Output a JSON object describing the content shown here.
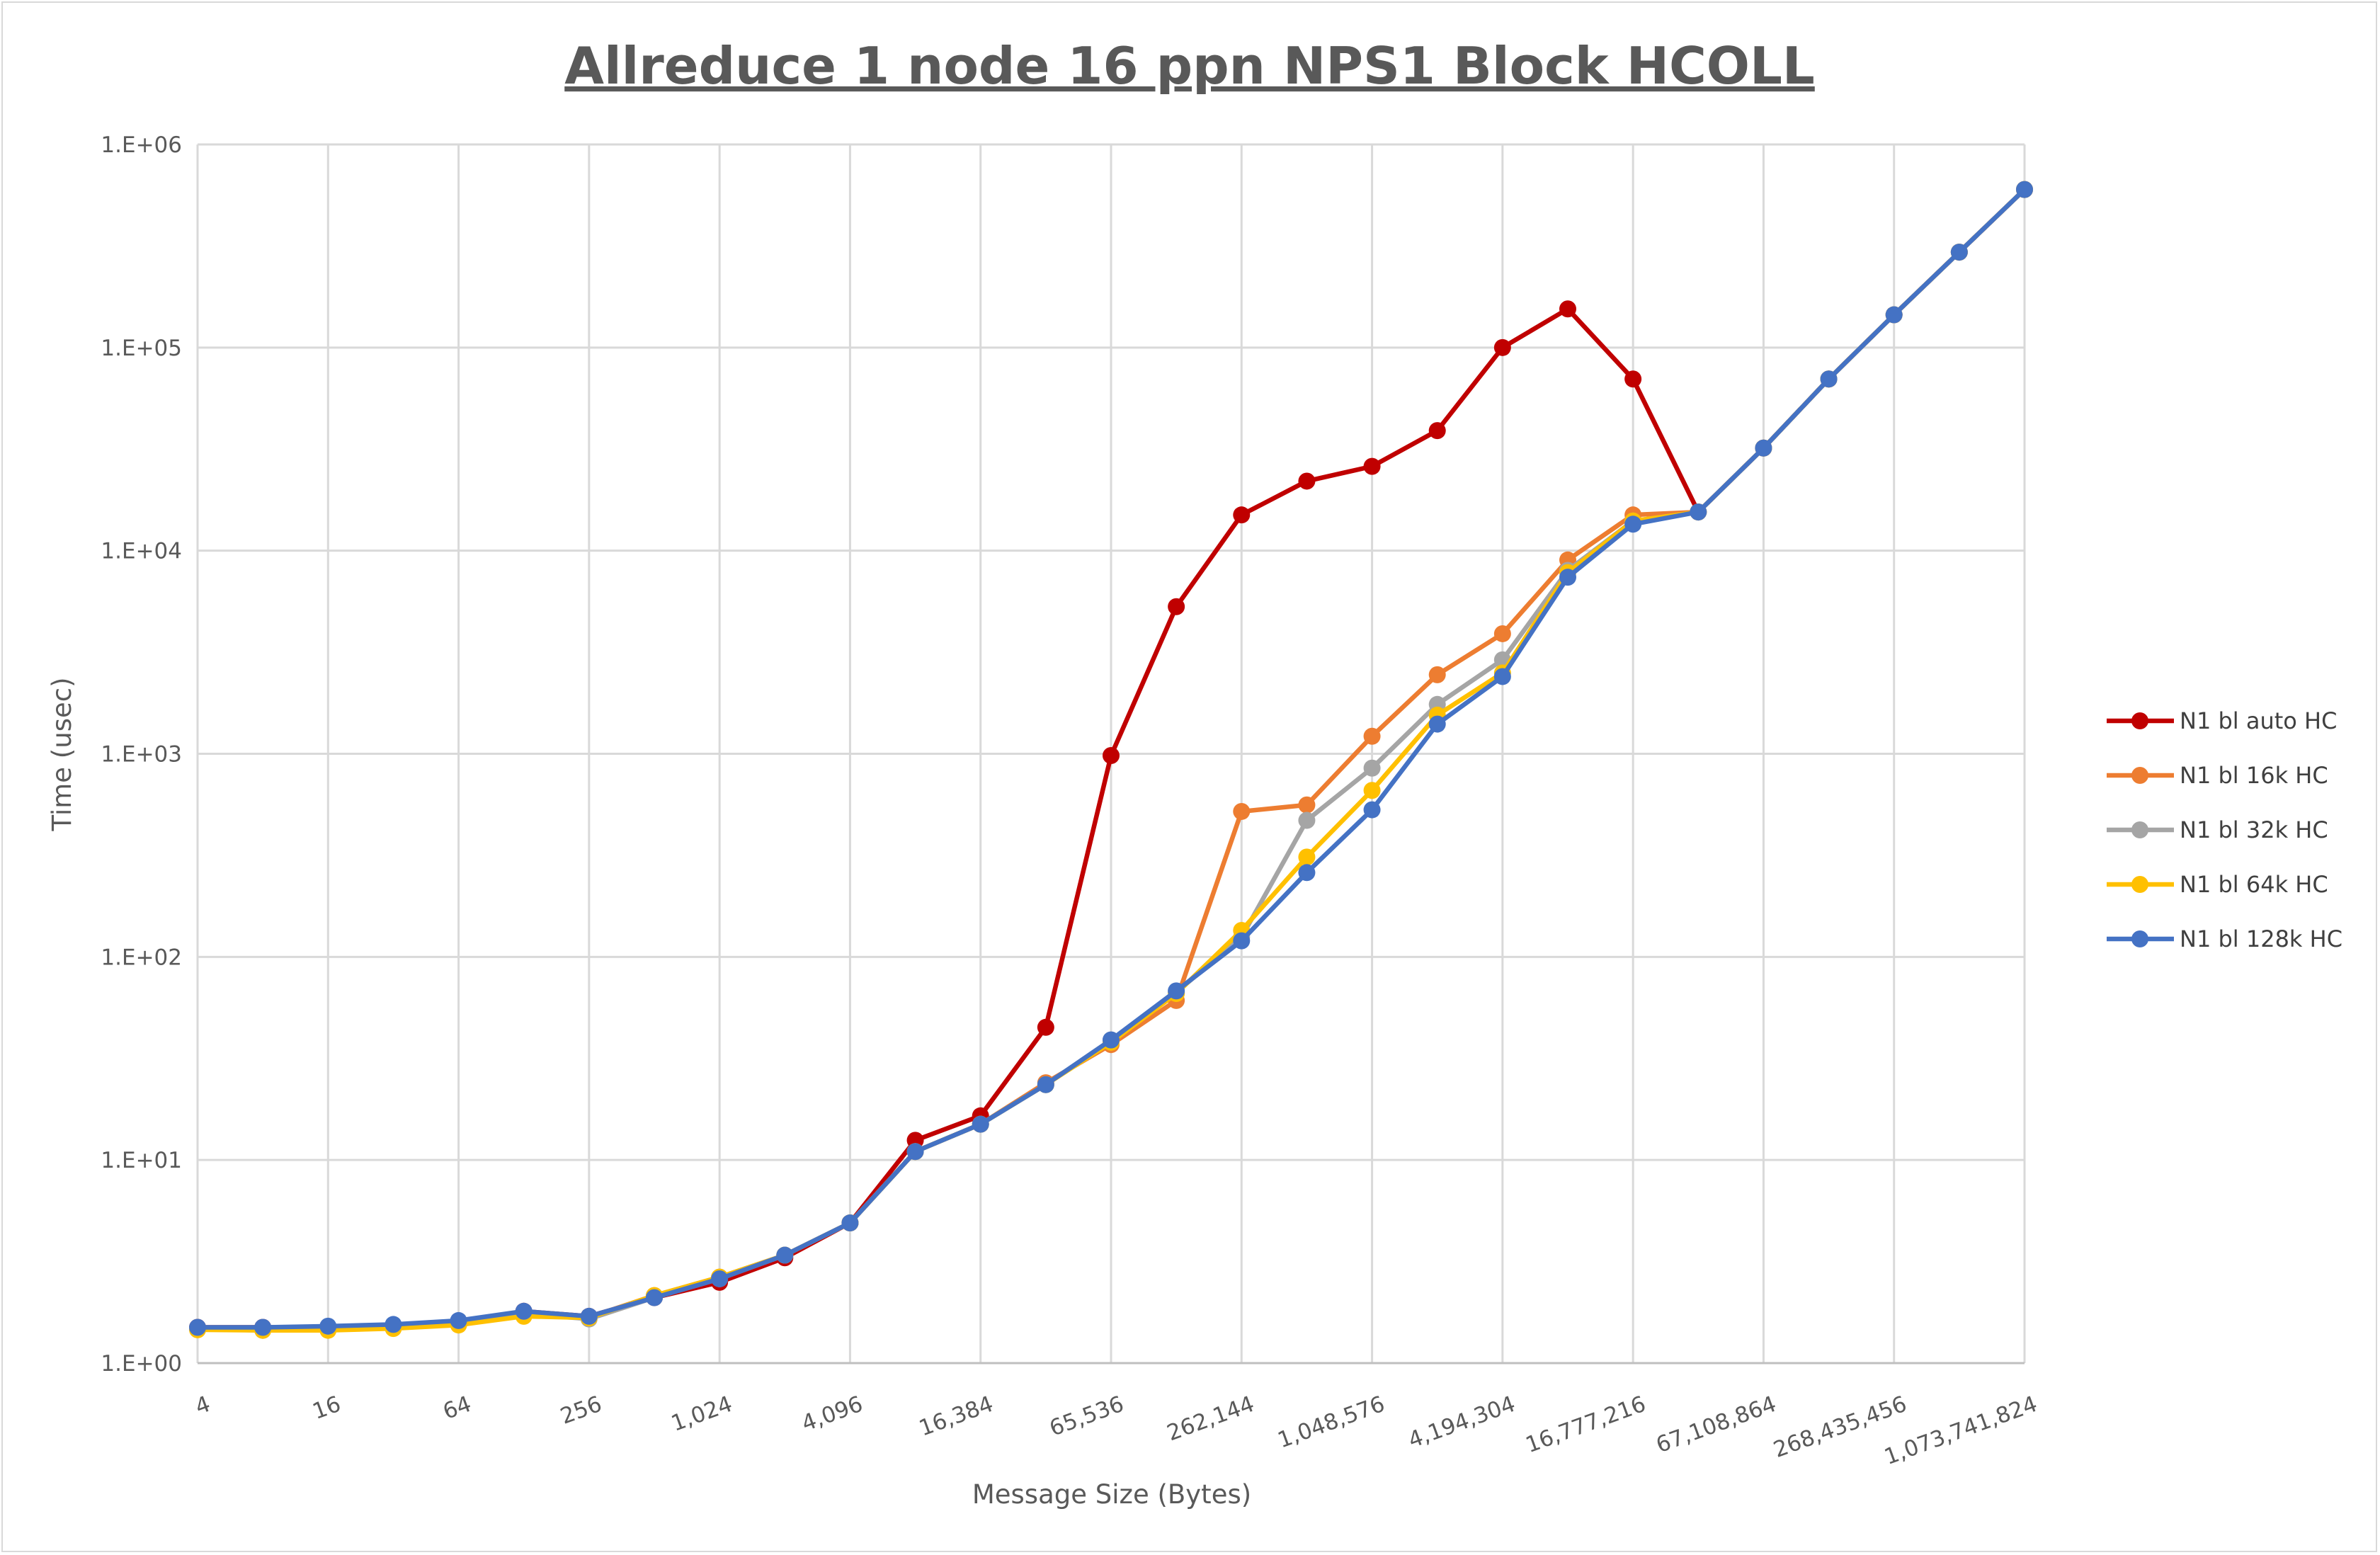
{
  "chart_data": {
    "type": "line",
    "title": "Allreduce 1 node 16 ppn NPS1 Block HCOLL",
    "xlabel": "Message Size (Bytes)",
    "ylabel": "Time (usec)",
    "y_scale": "log",
    "ylim": [
      1,
      1000000
    ],
    "y_tick_labels": [
      "1.E+00",
      "1.E+01",
      "1.E+02",
      "1.E+03",
      "1.E+04",
      "1.E+05",
      "1.E+06"
    ],
    "x": [
      4,
      8,
      16,
      32,
      64,
      128,
      256,
      512,
      1024,
      2048,
      4096,
      8192,
      16384,
      32768,
      65536,
      131072,
      262144,
      524288,
      1048576,
      2097152,
      4194304,
      8388608,
      16777216,
      33554432,
      67108864,
      134217728,
      268435456,
      536870912,
      1073741824
    ],
    "x_tick_labels": [
      "4",
      "16",
      "64",
      "256",
      "1,024",
      "4,096",
      "16,384",
      "65,536",
      "262,144",
      "1,048,576",
      "4,194,304",
      "16,777,216",
      "67,108,864",
      "268,435,456",
      "1,073,741,824"
    ],
    "grid": true,
    "legend_position": "right",
    "series": [
      {
        "name": "N1 bl auto HC",
        "color": "#c00000",
        "values": [
          1.5,
          1.5,
          1.5,
          1.52,
          1.6,
          1.8,
          1.7,
          2.1,
          2.5,
          3.3,
          4.9,
          12.5,
          16.5,
          45,
          980,
          5300,
          15000,
          22000,
          26000,
          39000,
          100000,
          155000,
          70000,
          15500,
          32000,
          70000,
          145000,
          295000,
          600000
        ]
      },
      {
        "name": "N1 bl 16k HC",
        "color": "#ed7d31",
        "values": [
          1.48,
          1.47,
          1.47,
          1.5,
          1.58,
          1.75,
          1.68,
          2.15,
          2.65,
          3.4,
          4.9,
          11,
          15,
          24,
          37,
          61,
          520,
          560,
          1220,
          2450,
          3900,
          9000,
          15000,
          15500,
          32000,
          70000,
          145000,
          295000,
          600000
        ]
      },
      {
        "name": "N1 bl 32k HC",
        "color": "#a5a5a5",
        "values": [
          1.47,
          1.45,
          1.46,
          1.5,
          1.57,
          1.75,
          1.65,
          2.1,
          2.6,
          3.4,
          4.9,
          11,
          15,
          23.5,
          39,
          67,
          125,
          470,
          850,
          1750,
          2900,
          8000,
          14000,
          15500,
          32000,
          70000,
          145000,
          295000,
          600000
        ]
      },
      {
        "name": "N1 bl 64k HC",
        "color": "#ffc000",
        "values": [
          1.46,
          1.45,
          1.45,
          1.48,
          1.54,
          1.7,
          1.67,
          2.15,
          2.65,
          3.4,
          4.9,
          11,
          15,
          23.5,
          38,
          66,
          135,
          310,
          660,
          1550,
          2500,
          7800,
          14000,
          15500,
          32000,
          70000,
          145000,
          295000,
          600000
        ]
      },
      {
        "name": "N1 bl 128k HC",
        "color": "#4472c4",
        "values": [
          1.5,
          1.5,
          1.52,
          1.55,
          1.62,
          1.8,
          1.7,
          2.1,
          2.6,
          3.4,
          4.9,
          11,
          15,
          23.5,
          39,
          68,
          120,
          260,
          530,
          1400,
          2400,
          7400,
          13500,
          15500,
          32000,
          70000,
          145000,
          295000,
          600000
        ]
      }
    ]
  }
}
